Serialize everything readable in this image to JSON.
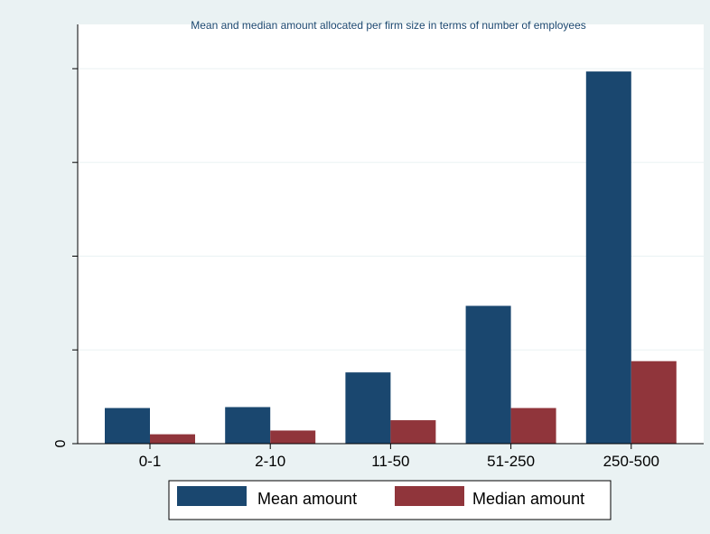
{
  "chart_data": {
    "type": "bar",
    "title": "Mean and median amount allocated per firm size in terms of number of employees",
    "xlabel": "",
    "ylabel": "",
    "categories": [
      "0-1",
      "2-10",
      "11-50",
      "51-250",
      "250-500"
    ],
    "series": [
      {
        "name": "Mean amount",
        "color": "#1a476f",
        "values": [
          0.38,
          0.39,
          0.76,
          1.47,
          3.97
        ]
      },
      {
        "name": "Median amount",
        "color": "#90353b",
        "values": [
          0.1,
          0.14,
          0.25,
          0.38,
          0.88
        ]
      }
    ],
    "ylim": [
      0,
      4
    ],
    "yticks": [
      0,
      1,
      2,
      3,
      4
    ],
    "ytick_labels": [
      "0",
      "",
      "",
      "",
      ""
    ],
    "grid": true,
    "legend_position": "bottom"
  },
  "colors": {
    "background": "#eaf2f3",
    "plot_background": "#ffffff",
    "gridline": "#eaf2f3",
    "title": "#1a476f"
  }
}
